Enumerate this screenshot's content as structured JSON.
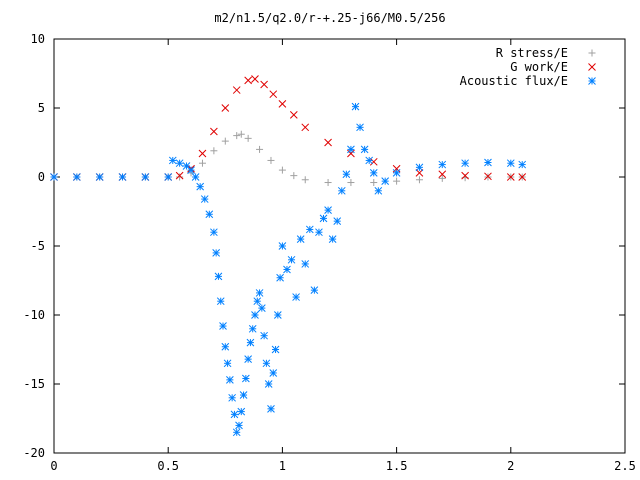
{
  "chart_data": {
    "type": "scatter",
    "title": "m2/n1.5/q2.0/r-+.25-j66/M0.5/256",
    "xlabel": "",
    "ylabel": "",
    "xlim": [
      0,
      2.5
    ],
    "ylim": [
      -20,
      10
    ],
    "grid": false,
    "legend_position": "top-right",
    "xticks": [
      0,
      0.5,
      1,
      1.5,
      2,
      2.5
    ],
    "xtick_labels": [
      "0",
      "0.5",
      "1",
      "1.5",
      "2",
      "2.5"
    ],
    "yticks": [
      10,
      5,
      0,
      -5,
      -10,
      -15,
      -20
    ],
    "ytick_labels": [
      "10",
      "5",
      "0",
      "-5",
      "-10",
      "-15",
      "-20"
    ],
    "series": [
      {
        "name": "R stress/E",
        "marker": "plus",
        "color": "#a0a0a0",
        "x": [
          0,
          0.1,
          0.2,
          0.3,
          0.4,
          0.5,
          0.55,
          0.6,
          0.65,
          0.7,
          0.75,
          0.8,
          0.82,
          0.85,
          0.9,
          0.95,
          1.0,
          1.05,
          1.1,
          1.2,
          1.3,
          1.4,
          1.5,
          1.6,
          1.7,
          1.8,
          1.9,
          2.0,
          2.05
        ],
        "y": [
          0,
          0,
          0,
          0,
          0,
          0,
          0,
          0.3,
          1.0,
          1.9,
          2.6,
          3.0,
          3.1,
          2.8,
          2.0,
          1.2,
          0.5,
          0.1,
          -0.2,
          -0.4,
          -0.4,
          -0.4,
          -0.3,
          -0.2,
          -0.1,
          -0.05,
          0,
          0,
          0
        ]
      },
      {
        "name": "G work/E",
        "marker": "cross",
        "color": "#e00000",
        "x": [
          0,
          0.1,
          0.2,
          0.3,
          0.4,
          0.5,
          0.55,
          0.6,
          0.65,
          0.7,
          0.75,
          0.8,
          0.85,
          0.88,
          0.92,
          0.96,
          1.0,
          1.05,
          1.1,
          1.2,
          1.3,
          1.4,
          1.5,
          1.6,
          1.7,
          1.8,
          1.9,
          2.0,
          2.05
        ],
        "y": [
          0,
          0,
          0,
          0,
          0,
          0,
          0.1,
          0.6,
          1.7,
          3.3,
          5.0,
          6.3,
          7.0,
          7.1,
          6.7,
          6.0,
          5.3,
          4.5,
          3.6,
          2.5,
          1.7,
          1.1,
          0.6,
          0.3,
          0.2,
          0.1,
          0.05,
          0,
          0
        ]
      },
      {
        "name": "Acoustic flux/E",
        "marker": "star",
        "color": "#0080ff",
        "x": [
          0,
          0.1,
          0.2,
          0.3,
          0.4,
          0.5,
          0.52,
          0.55,
          0.58,
          0.6,
          0.62,
          0.64,
          0.66,
          0.68,
          0.7,
          0.71,
          0.72,
          0.73,
          0.74,
          0.75,
          0.76,
          0.77,
          0.78,
          0.79,
          0.8,
          0.81,
          0.82,
          0.83,
          0.84,
          0.85,
          0.86,
          0.87,
          0.88,
          0.89,
          0.9,
          0.91,
          0.92,
          0.93,
          0.94,
          0.95,
          0.96,
          0.97,
          0.98,
          0.99,
          1.0,
          1.02,
          1.04,
          1.06,
          1.08,
          1.1,
          1.12,
          1.14,
          1.16,
          1.18,
          1.2,
          1.22,
          1.24,
          1.26,
          1.28,
          1.3,
          1.32,
          1.34,
          1.36,
          1.38,
          1.4,
          1.42,
          1.45,
          1.5,
          1.6,
          1.7,
          1.8,
          1.9,
          2.0,
          2.05
        ],
        "y": [
          0,
          0,
          0,
          0,
          0,
          0,
          1.2,
          1.0,
          0.8,
          0.5,
          0.0,
          -0.7,
          -1.6,
          -2.7,
          -4.0,
          -5.5,
          -7.2,
          -9.0,
          -10.8,
          -12.3,
          -13.5,
          -14.7,
          -16.0,
          -17.2,
          -18.5,
          -18.0,
          -17.0,
          -15.8,
          -14.6,
          -13.2,
          -12.0,
          -11.0,
          -10.0,
          -9.0,
          -8.4,
          -9.5,
          -11.5,
          -13.5,
          -15.0,
          -16.8,
          -14.2,
          -12.5,
          -10.0,
          -7.3,
          -5.0,
          -6.7,
          -6.0,
          -8.7,
          -4.5,
          -6.3,
          -3.8,
          -8.2,
          -4.0,
          -3.0,
          -2.4,
          -4.5,
          -3.2,
          -1.0,
          0.2,
          2.0,
          5.1,
          3.6,
          2.0,
          1.2,
          0.3,
          -1.0,
          -0.3,
          0.3,
          0.7,
          0.9,
          1.0,
          1.05,
          1.0,
          0.9
        ]
      }
    ]
  }
}
